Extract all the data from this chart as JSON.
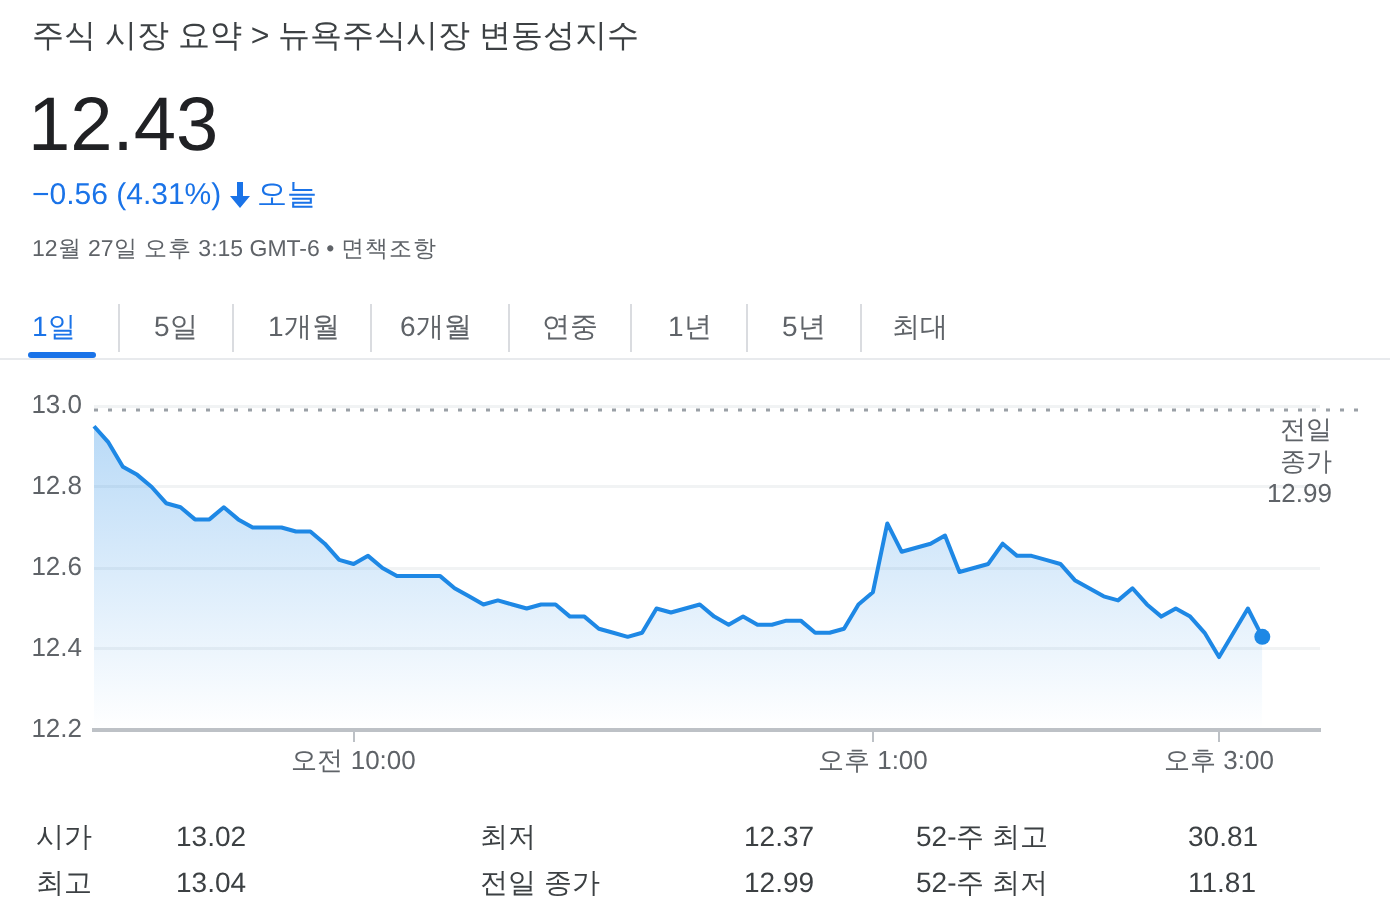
{
  "chart_data": {
    "type": "area",
    "title": "주식 시장 요약 > 뉴욕주식시장 변동성지수",
    "subtitle": "12.43",
    "annotations": [
      "−0.56 (4.31%)",
      "오늘",
      "12월 27일 오후 3:15 GMT-6 • 면책조항",
      "1일",
      "5일",
      "1개월",
      "6개월",
      "연중",
      "1년",
      "5년",
      "최대",
      "시가",
      "13.02",
      "최저",
      "12.37",
      "52-주 최고",
      "30.81",
      "최고",
      "13.04",
      "전일 종가",
      "12.99",
      "52-주 최저",
      "11.81"
    ],
    "categories": [
      null,
      null,
      null,
      null,
      null,
      null,
      null,
      null,
      null,
      null,
      null,
      null,
      null,
      null,
      null,
      null,
      null,
      null,
      "오전 10:00",
      null,
      null,
      null,
      null,
      null,
      null,
      null,
      null,
      null,
      null,
      null,
      null,
      null,
      null,
      null,
      null,
      null,
      null,
      null,
      null,
      null,
      null,
      null,
      null,
      null,
      null,
      null,
      null,
      null,
      null,
      null,
      null,
      null,
      null,
      null,
      "오후 1:00",
      null,
      null,
      null,
      null,
      null,
      null,
      null,
      null,
      null,
      null,
      null,
      null,
      null,
      null,
      null,
      null,
      null,
      null,
      null,
      null,
      null,
      null,
      null,
      "오후 3:00",
      null,
      null,
      null,
      null,
      null,
      null,
      null
    ],
    "series": [
      {
        "color": "#1e88e5",
        "values": [
          12.95,
          12.91,
          12.85,
          12.83,
          12.8,
          12.76,
          12.75,
          12.72,
          12.72,
          12.75,
          12.72,
          12.7,
          12.7,
          12.7,
          12.69,
          12.69,
          12.66,
          12.62,
          12.61,
          12.63,
          12.6,
          12.58,
          12.58,
          12.58,
          12.58,
          12.55,
          12.53,
          12.51,
          12.52,
          12.51,
          12.5,
          12.51,
          12.51,
          12.48,
          12.48,
          12.45,
          12.44,
          12.43,
          12.44,
          12.5,
          12.49,
          12.5,
          12.51,
          12.48,
          12.46,
          12.48,
          12.46,
          12.46,
          12.47,
          12.47,
          12.44,
          12.44,
          12.45,
          12.51,
          12.54,
          12.71,
          12.64,
          12.65,
          12.66,
          12.68,
          12.59,
          12.6,
          12.61,
          12.66,
          12.63,
          12.63,
          12.62,
          12.61,
          12.57,
          12.55,
          12.53,
          12.52,
          12.55,
          12.51,
          12.48,
          12.5,
          12.48,
          12.44,
          12.38,
          12.44,
          12.5,
          12.43,
          null,
          null,
          null,
          null
        ]
      }
    ],
    "ylim": [
      12.2,
      13.0
    ],
    "yticks": [
      {
        "value": 12.2,
        "label": "12.2"
      },
      {
        "value": 12.4,
        "label": "12.4"
      },
      {
        "value": 12.6,
        "label": "12.6"
      },
      {
        "value": 12.8,
        "label": "12.8"
      },
      {
        "value": 13.0,
        "label": "13.0"
      }
    ],
    "ref_lines": [
      {
        "axis": "y",
        "value": 12.99,
        "label": "전일 종가",
        "color": "#9aa0a6",
        "line_style": "dotted"
      }
    ],
    "grid": "y",
    "legend": false
  }
}
